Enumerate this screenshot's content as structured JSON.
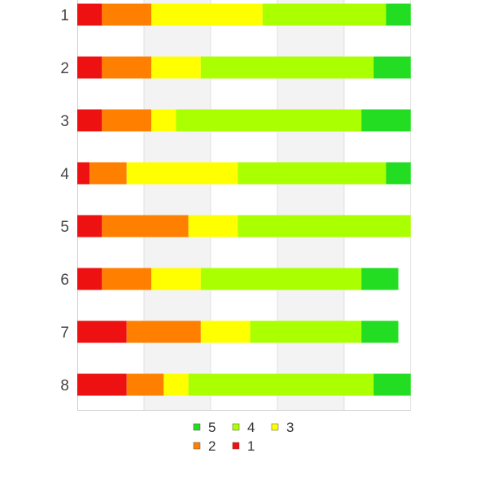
{
  "chart_data": {
    "type": "bar",
    "orientation": "horizontal",
    "stacked": true,
    "categories": [
      "1",
      "2",
      "3",
      "4",
      "5",
      "6",
      "7",
      "8"
    ],
    "series": [
      {
        "name": "1",
        "color": "#ee1111",
        "values": [
          2,
          2,
          2,
          1,
          2,
          2,
          4,
          4
        ]
      },
      {
        "name": "2",
        "color": "#ff8000",
        "values": [
          4,
          4,
          4,
          3,
          7,
          4,
          6,
          3
        ]
      },
      {
        "name": "3",
        "color": "#ffff00",
        "values": [
          9,
          4,
          2,
          9,
          4,
          4,
          4,
          2
        ]
      },
      {
        "name": "4",
        "color": "#aaff00",
        "values": [
          10,
          14,
          15,
          12,
          14,
          13,
          9,
          15
        ]
      },
      {
        "name": "5",
        "color": "#22dd22",
        "values": [
          2,
          3,
          4,
          2,
          0,
          3,
          3,
          3
        ]
      }
    ],
    "xlim": [
      0,
      27
    ],
    "alternating_bands": true,
    "grid": true,
    "legend_position": "bottom"
  }
}
